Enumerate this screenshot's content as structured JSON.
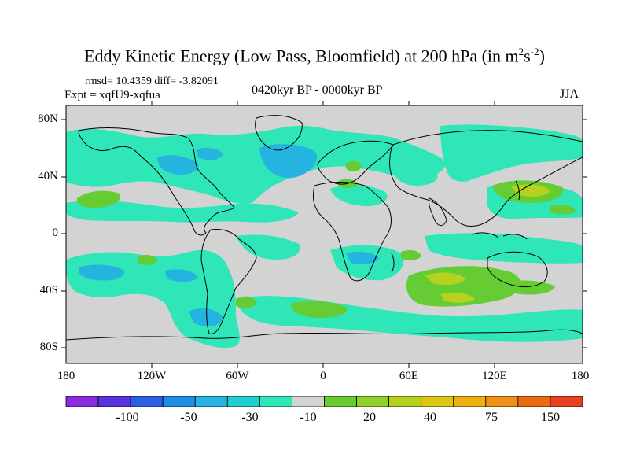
{
  "title": "Eddy Kinetic Energy (Low Pass, Bloomfield) at 200 hPa (in m",
  "title_units_sup1": "2",
  "title_units_mid": "s",
  "title_units_sup2": "-2",
  "title_close": ")",
  "stats": "rmsd= 10.4359 diff= -3.82091",
  "experiment": "Expt = xqfU9-xqfua",
  "period": "0420kyr BP - 0000kyr BP",
  "season": "JJA",
  "lat_labels": [
    "80N",
    "40N",
    "0",
    "40S",
    "80S"
  ],
  "lon_labels": [
    "180",
    "120W",
    "60W",
    "0",
    "60E",
    "120E",
    "180"
  ],
  "colorbar": {
    "labels": [
      "-100",
      "-50",
      "-30",
      "-10",
      "20",
      "40",
      "75",
      "150"
    ],
    "colors": [
      "#8a2be2",
      "#5a33e0",
      "#2b5fe6",
      "#1e8fe6",
      "#25b4e0",
      "#20cfd0",
      "#2ee6b8",
      "#d3d3d3",
      "#66cc33",
      "#8fd02a",
      "#b6d21e",
      "#dcc814",
      "#eeb010",
      "#f09018",
      "#ec6a10",
      "#e84020"
    ]
  },
  "colors": {
    "land_ocean_gray": "#d3d3d3",
    "neg_weak": "#2ee6b8",
    "neg_mid": "#25b4e0",
    "neg_strong": "#1e8fe6",
    "pos_weak": "#66cc33",
    "pos_mid": "#b6d21e",
    "pos_strong": "#dcc814"
  }
}
